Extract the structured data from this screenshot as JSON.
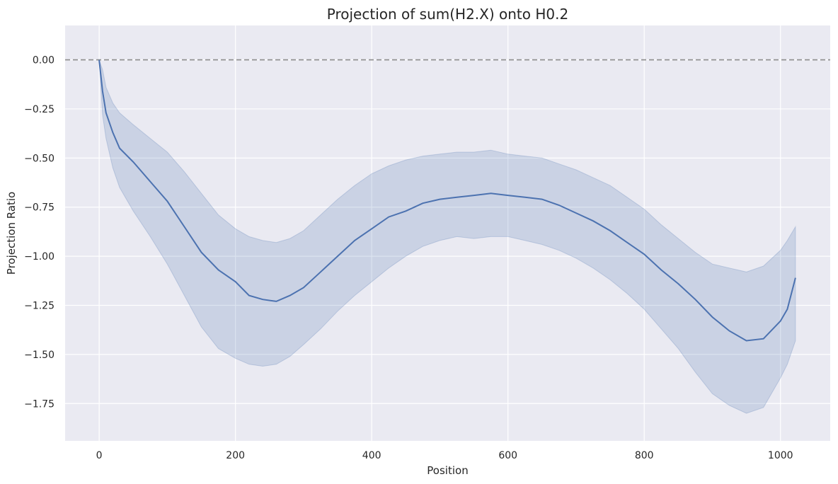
{
  "chart_data": {
    "type": "line",
    "title": "Projection of sum(H2.X) onto H0.2",
    "xlabel": "Position",
    "ylabel": "Projection Ratio",
    "xlim": [
      -50,
      1073
    ],
    "ylim": [
      -1.94,
      0.175
    ],
    "xticks": [
      0,
      200,
      400,
      600,
      800,
      1000
    ],
    "xtick_labels": [
      "0",
      "200",
      "400",
      "600",
      "800",
      "1000"
    ],
    "yticks": [
      0.0,
      -0.25,
      -0.5,
      -0.75,
      -1.0,
      -1.25,
      -1.5,
      -1.75
    ],
    "ytick_labels": [
      "0.00",
      "−0.25",
      "−0.50",
      "−0.75",
      "−1.00",
      "−1.25",
      "−1.50",
      "−1.75"
    ],
    "grid": true,
    "reference_line": {
      "y": 0.0,
      "style": "dashed",
      "color": "#8c8c8c"
    },
    "series": [
      {
        "color": "#4c72b0",
        "band_color": "#4c72b0",
        "x": [
          0,
          5,
          10,
          20,
          30,
          50,
          75,
          100,
          125,
          150,
          175,
          200,
          220,
          240,
          260,
          280,
          300,
          325,
          350,
          375,
          400,
          425,
          450,
          475,
          500,
          525,
          550,
          575,
          600,
          625,
          650,
          675,
          700,
          725,
          750,
          775,
          800,
          825,
          850,
          875,
          900,
          925,
          950,
          975,
          1000,
          1010,
          1022
        ],
        "y": [
          0.0,
          -0.16,
          -0.27,
          -0.37,
          -0.45,
          -0.52,
          -0.62,
          -0.72,
          -0.85,
          -0.98,
          -1.07,
          -1.13,
          -1.2,
          -1.22,
          -1.23,
          -1.2,
          -1.16,
          -1.08,
          -1.0,
          -0.92,
          -0.86,
          -0.8,
          -0.77,
          -0.73,
          -0.71,
          -0.7,
          -0.69,
          -0.68,
          -0.69,
          -0.7,
          -0.71,
          -0.74,
          -0.78,
          -0.82,
          -0.87,
          -0.93,
          -0.99,
          -1.07,
          -1.14,
          -1.22,
          -1.31,
          -1.38,
          -1.43,
          -1.42,
          -1.33,
          -1.27,
          -1.11
        ],
        "lower": [
          0.0,
          -0.28,
          -0.4,
          -0.55,
          -0.65,
          -0.77,
          -0.9,
          -1.04,
          -1.2,
          -1.36,
          -1.47,
          -1.52,
          -1.55,
          -1.56,
          -1.55,
          -1.51,
          -1.45,
          -1.37,
          -1.28,
          -1.2,
          -1.13,
          -1.06,
          -1.0,
          -0.95,
          -0.92,
          -0.9,
          -0.91,
          -0.9,
          -0.9,
          -0.92,
          -0.94,
          -0.97,
          -1.01,
          -1.06,
          -1.12,
          -1.19,
          -1.27,
          -1.37,
          -1.47,
          -1.59,
          -1.7,
          -1.76,
          -1.8,
          -1.77,
          -1.62,
          -1.55,
          -1.43
        ],
        "upper": [
          0.0,
          -0.05,
          -0.14,
          -0.22,
          -0.27,
          -0.33,
          -0.4,
          -0.47,
          -0.57,
          -0.68,
          -0.79,
          -0.86,
          -0.9,
          -0.92,
          -0.93,
          -0.91,
          -0.87,
          -0.79,
          -0.71,
          -0.64,
          -0.58,
          -0.54,
          -0.51,
          -0.49,
          -0.48,
          -0.47,
          -0.47,
          -0.46,
          -0.48,
          -0.49,
          -0.5,
          -0.53,
          -0.56,
          -0.6,
          -0.64,
          -0.7,
          -0.76,
          -0.84,
          -0.91,
          -0.98,
          -1.04,
          -1.06,
          -1.08,
          -1.05,
          -0.97,
          -0.92,
          -0.85
        ]
      }
    ]
  }
}
